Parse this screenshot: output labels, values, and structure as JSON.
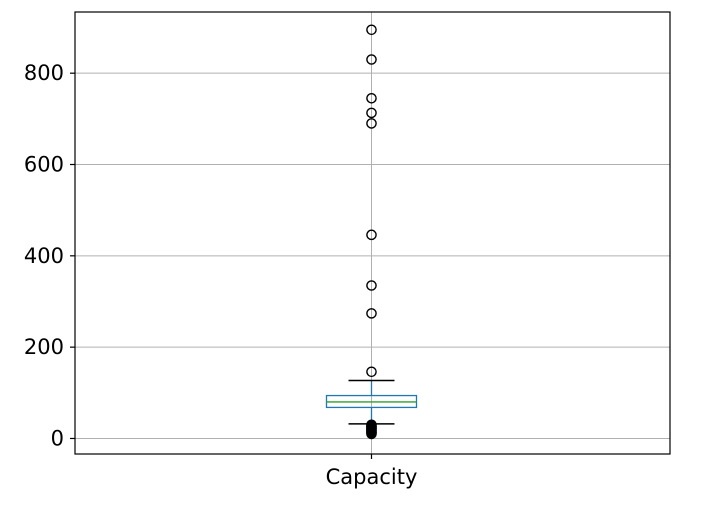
{
  "chart_data": {
    "type": "box",
    "categories": [
      "Capacity"
    ],
    "title": "",
    "xlabel": "",
    "ylabel": "",
    "ylim": [
      -34,
      934
    ],
    "yticks": [
      0,
      200,
      400,
      600,
      800
    ],
    "grid": true,
    "boxes": [
      {
        "category": "Capacity",
        "q1": 68,
        "median": 80,
        "q3": 94,
        "whisker_low": 32,
        "whisker_high": 127,
        "fliers": [
          895,
          830,
          745,
          713,
          690,
          446,
          335,
          274,
          146,
          30,
          28,
          26,
          24,
          22,
          20,
          18,
          16,
          14,
          12,
          10
        ]
      }
    ],
    "colors": {
      "box": "#1f77b4",
      "median": "#2ca02c",
      "whisker": "#000000",
      "flier": "#000000",
      "grid": "#b0b0b0"
    }
  }
}
